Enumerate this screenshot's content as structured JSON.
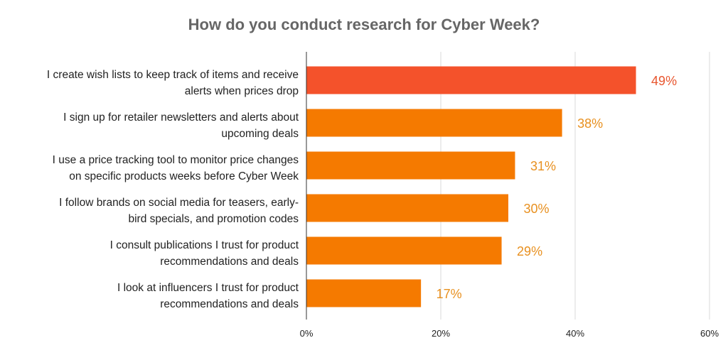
{
  "chart_data": {
    "type": "bar",
    "orientation": "horizontal",
    "title": "How do you conduct research for Cyber Week?",
    "categories": [
      [
        "I create wish lists to keep track of items and receive",
        "alerts when prices drop"
      ],
      [
        "I sign up for retailer newsletters and alerts about",
        "upcoming deals"
      ],
      [
        "I use a price tracking tool to monitor price changes",
        "on specific products weeks before Cyber Week"
      ],
      [
        "I follow brands on social media for teasers, early-",
        "bird specials, and promotion codes"
      ],
      [
        "I consult publications I trust for product",
        "recommendations and deals"
      ],
      [
        "I look at influencers I trust for product",
        "recommendations and deals"
      ]
    ],
    "values": [
      49,
      38,
      31,
      30,
      29,
      17
    ],
    "data_labels": [
      "49%",
      "38%",
      "31%",
      "30%",
      "29%",
      "17%"
    ],
    "xlim": [
      0,
      60
    ],
    "xticks": [
      0,
      20,
      40,
      60
    ],
    "xtick_labels": [
      "0%",
      "20%",
      "40%",
      "60%"
    ],
    "xlabel": "",
    "ylabel": "",
    "grid": "vertical",
    "legend": "none",
    "colors": {
      "highlight_bar": "#F4522B",
      "bar": "#F57A00",
      "highlight_label": "#E8562F",
      "label": "#E8901F",
      "grid": "#d9d9d9",
      "axis": "#333333",
      "title": "#666666"
    }
  }
}
